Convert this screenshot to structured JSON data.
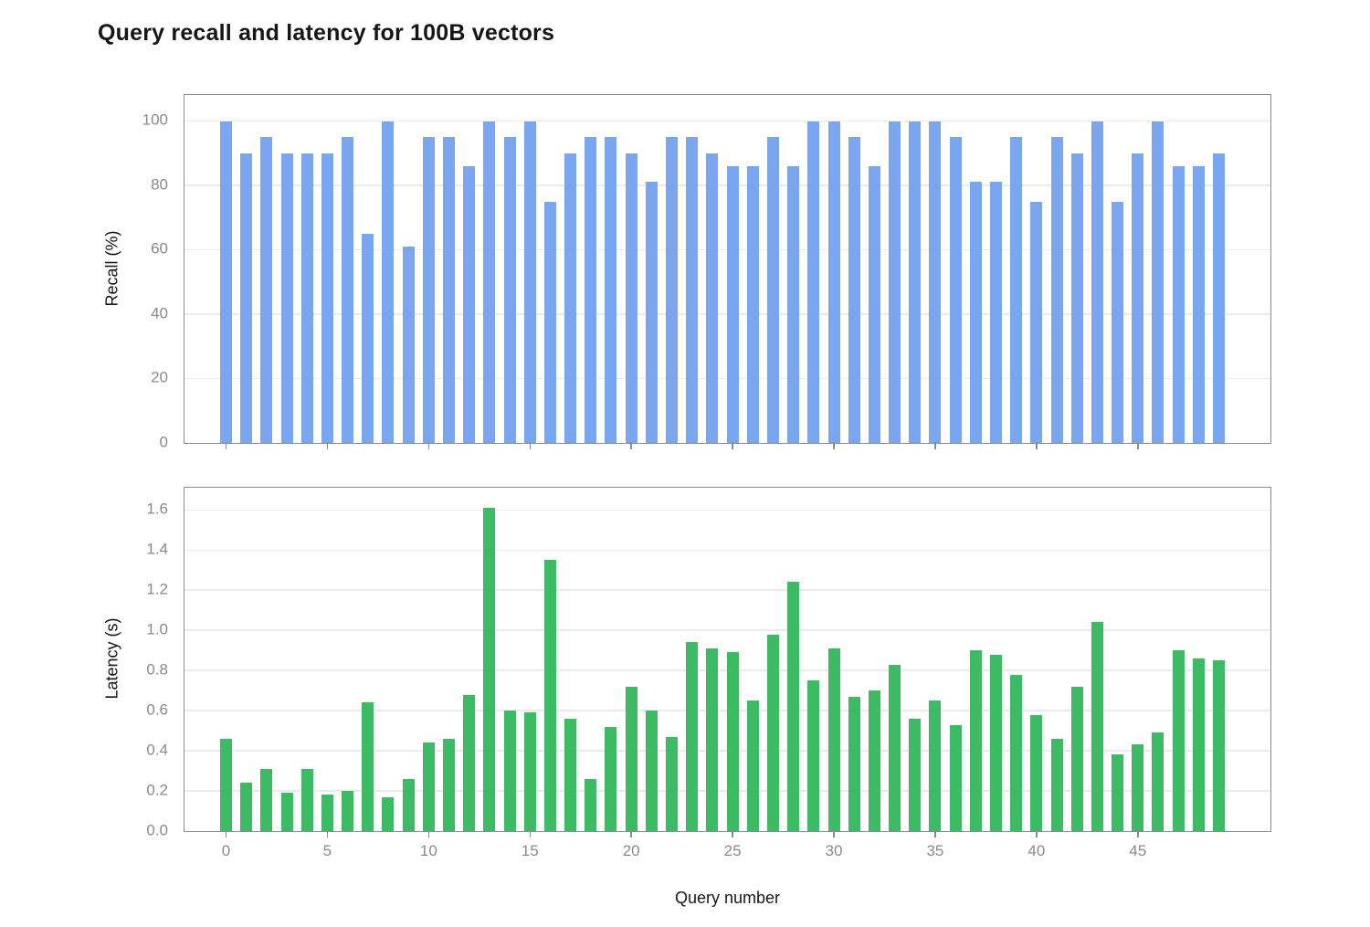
{
  "title": "Query recall and latency for 100B vectors",
  "chart_data": [
    {
      "type": "bar",
      "name": "recall",
      "title": "",
      "xlabel": "",
      "ylabel": "Recall (%)",
      "bar_color": "#7aa6f0",
      "grid": true,
      "legend_position": "none",
      "ylim": [
        0,
        107.8
      ],
      "y_ticks": [
        0,
        20,
        40,
        60,
        80,
        100
      ],
      "y_tick_labels": [
        "0",
        "20",
        "40",
        "60",
        "80",
        "100"
      ],
      "x_ticks": [
        0,
        5,
        10,
        15,
        20,
        25,
        30,
        35,
        40,
        45
      ],
      "show_x_tick_labels": false,
      "x": [
        0,
        1,
        2,
        3,
        4,
        5,
        6,
        7,
        8,
        9,
        10,
        11,
        12,
        13,
        14,
        15,
        16,
        17,
        18,
        19,
        20,
        21,
        22,
        23,
        24,
        25,
        26,
        27,
        28,
        29,
        30,
        31,
        32,
        33,
        34,
        35,
        36,
        37,
        38,
        39,
        40,
        41,
        42,
        43,
        44,
        45,
        46,
        47,
        48,
        49
      ],
      "values": [
        100,
        90,
        95,
        90,
        90,
        90,
        95,
        65,
        100,
        61,
        95,
        95,
        86,
        100,
        95,
        100,
        75,
        90,
        95,
        95,
        90,
        81,
        95,
        95,
        90,
        86,
        86,
        95,
        86,
        100,
        100,
        95,
        86,
        100,
        100,
        100,
        95,
        81,
        81,
        95,
        75,
        95,
        90,
        100,
        75,
        90,
        100,
        86,
        86,
        90
      ]
    },
    {
      "type": "bar",
      "name": "latency",
      "title": "",
      "xlabel": "Query number",
      "ylabel": "Latency (s)",
      "bar_color": "#3cba64",
      "grid": true,
      "legend_position": "none",
      "ylim": [
        0,
        1.706
      ],
      "y_ticks": [
        0,
        0.2,
        0.4,
        0.6,
        0.8,
        1.0,
        1.2,
        1.4,
        1.6
      ],
      "y_tick_labels": [
        "0.0",
        "0.2",
        "0.4",
        "0.6",
        "0.8",
        "1.0",
        "1.2",
        "1.4",
        "1.6"
      ],
      "x_ticks": [
        0,
        5,
        10,
        15,
        20,
        25,
        30,
        35,
        40,
        45
      ],
      "show_x_tick_labels": true,
      "x": [
        0,
        1,
        2,
        3,
        4,
        5,
        6,
        7,
        8,
        9,
        10,
        11,
        12,
        13,
        14,
        15,
        16,
        17,
        18,
        19,
        20,
        21,
        22,
        23,
        24,
        25,
        26,
        27,
        28,
        29,
        30,
        31,
        32,
        33,
        34,
        35,
        36,
        37,
        38,
        39,
        40,
        41,
        42,
        43,
        44,
        45,
        46,
        47,
        48,
        49
      ],
      "values": [
        0.46,
        0.24,
        0.31,
        0.19,
        0.31,
        0.18,
        0.2,
        0.64,
        0.17,
        0.26,
        0.44,
        0.46,
        0.68,
        1.61,
        0.6,
        0.59,
        1.35,
        0.56,
        0.26,
        0.52,
        0.72,
        0.6,
        0.47,
        0.94,
        0.91,
        0.89,
        0.65,
        0.98,
        1.24,
        0.75,
        0.91,
        0.67,
        0.7,
        0.83,
        0.56,
        0.65,
        0.53,
        0.9,
        0.88,
        0.78,
        0.58,
        0.46,
        0.72,
        1.04,
        0.38,
        0.43,
        0.49,
        0.9,
        0.86,
        0.85
      ]
    }
  ]
}
